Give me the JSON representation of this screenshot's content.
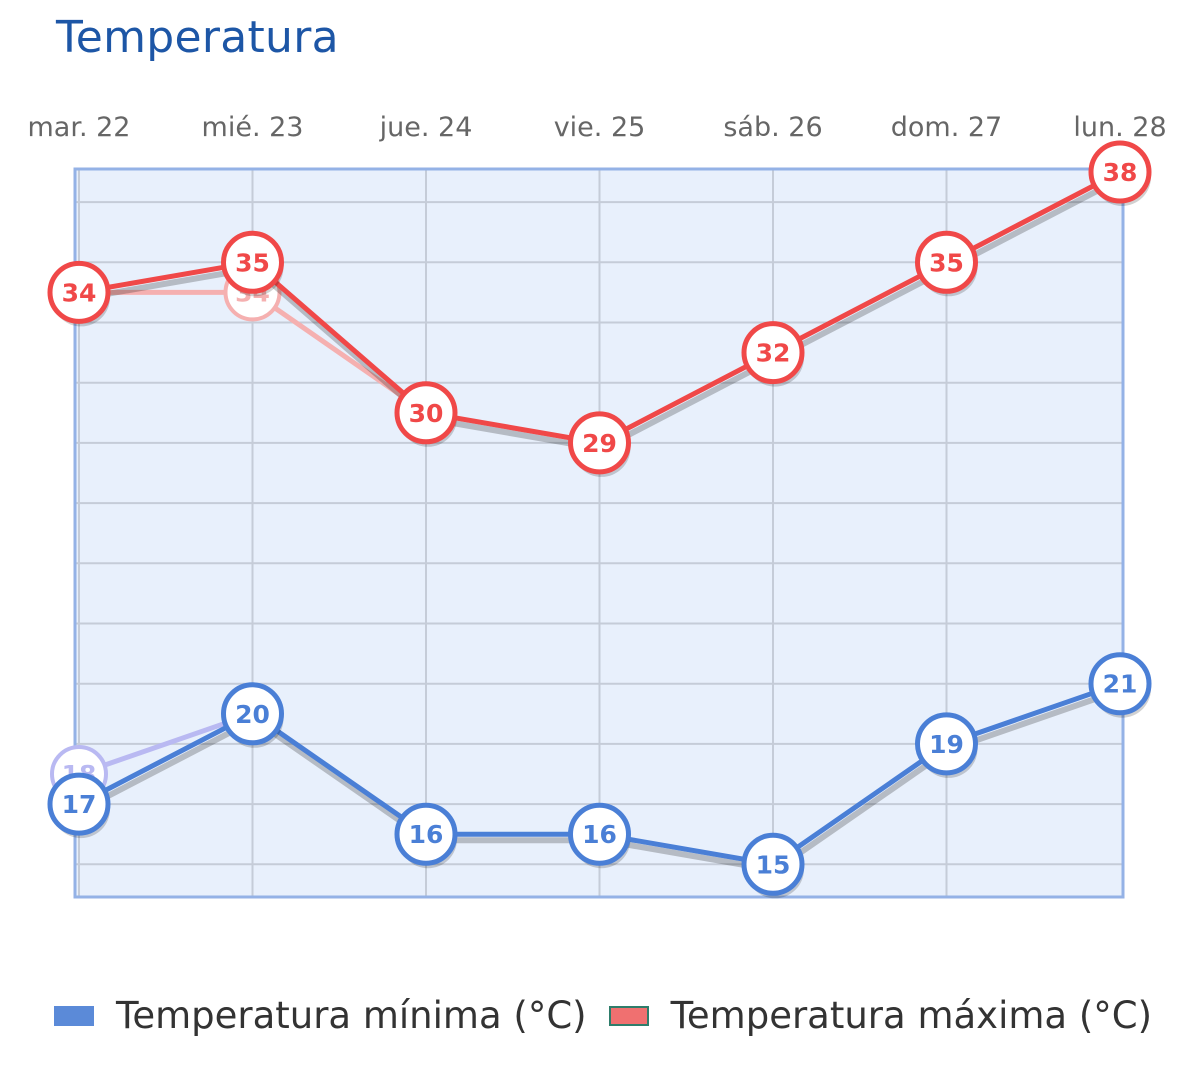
{
  "title": "Temperatura",
  "chart_data": {
    "type": "line",
    "categories": [
      "mar. 22",
      "mié. 23",
      "jue. 24",
      "vie. 25",
      "sáb. 26",
      "dom. 27",
      "lun. 28"
    ],
    "series": [
      {
        "name": "Temperatura mínima (°C)",
        "color": "#4a7fd6",
        "values": [
          17,
          20,
          16,
          16,
          15,
          19,
          21
        ]
      },
      {
        "name": "Temperatura máxima (°C)",
        "color": "#f04848",
        "values": [
          34,
          35,
          30,
          29,
          32,
          35,
          38
        ]
      }
    ],
    "ghost_series": [
      {
        "color": "#b9b9f2",
        "values": [
          18,
          20
        ]
      },
      {
        "color": "#f5b0b0",
        "values": [
          34,
          34,
          30
        ]
      }
    ],
    "ylim": [
      14,
      39
    ],
    "grid": true,
    "legend_position": "bottom-left",
    "xlabel": "",
    "ylabel": ""
  }
}
